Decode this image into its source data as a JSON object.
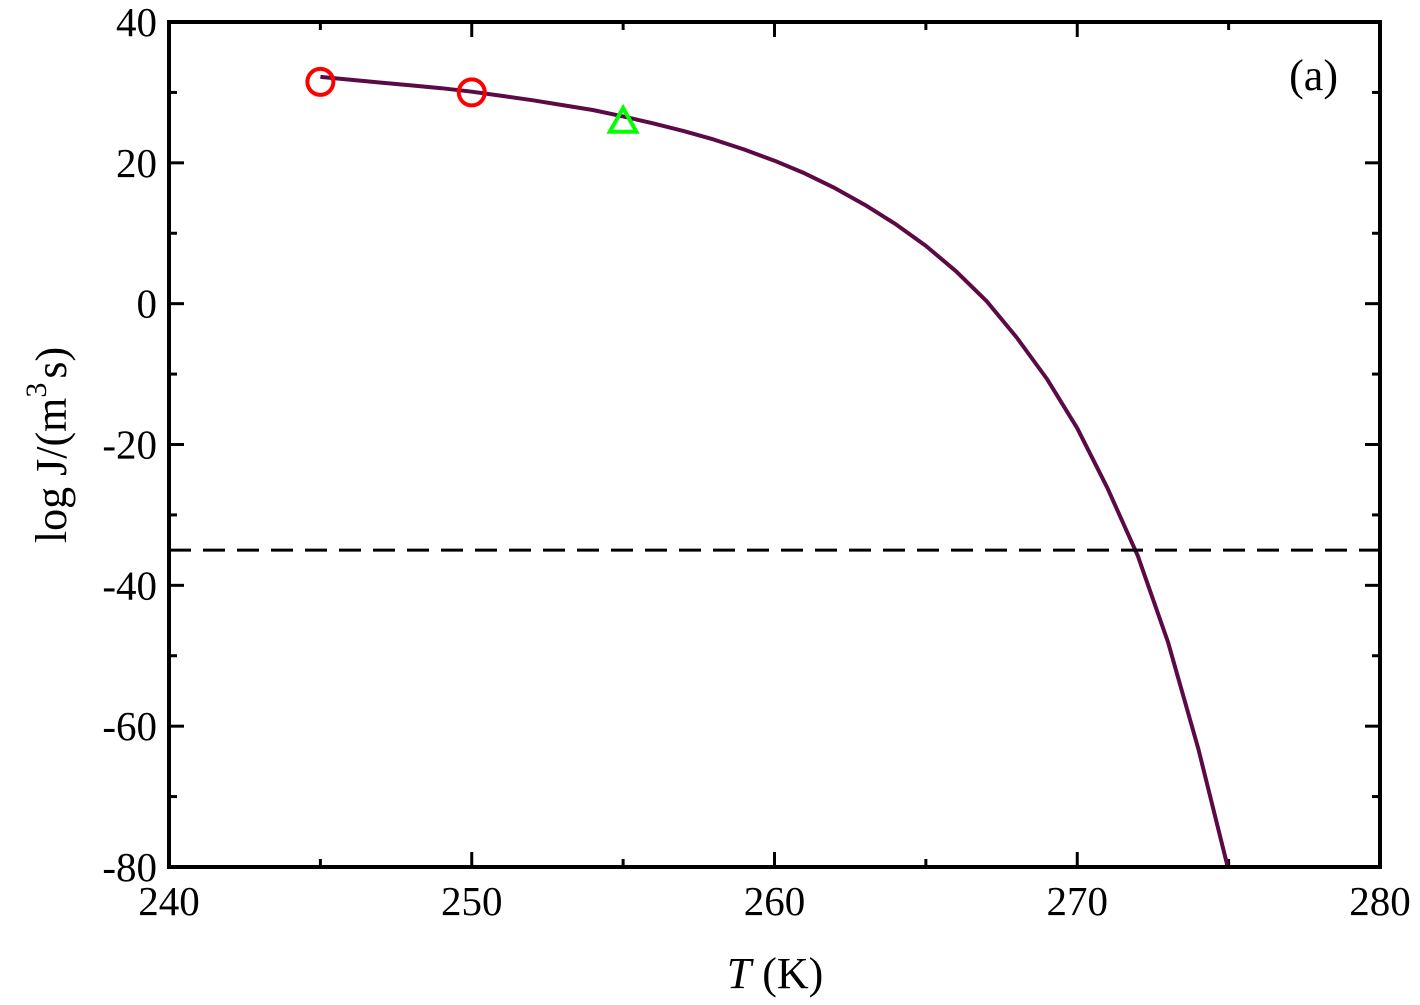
{
  "chart_data": {
    "type": "line",
    "title": "",
    "panel_label": "(a)",
    "xlabel": {
      "var": "T",
      "unit": " (K)"
    },
    "ylabel": {
      "main": "log J/(m",
      "sup": "3",
      "tail": "s)"
    },
    "xlim": [
      240,
      280
    ],
    "ylim": [
      -80,
      40
    ],
    "xticks": [
      240,
      250,
      260,
      270,
      280
    ],
    "yticks": [
      40,
      20,
      0,
      -20,
      -40,
      -60,
      -80
    ],
    "xtick_labels": [
      "240",
      "250",
      "260",
      "270",
      "280"
    ],
    "ytick_labels": [
      "40",
      "20",
      "0",
      "-20",
      "-40",
      "-60",
      "-80"
    ],
    "x_minor_step": 5,
    "y_minor_step": 10,
    "grid": false,
    "series": [
      {
        "kind": "line",
        "color": "#5c0a45",
        "x": [
          245,
          246,
          247,
          248,
          249,
          250,
          251,
          252,
          253,
          254,
          255,
          256,
          257,
          258,
          259,
          260,
          261,
          262,
          263,
          264,
          265,
          266,
          267,
          268,
          269,
          270,
          271,
          272,
          273,
          274,
          275
        ],
        "y": [
          32.2,
          31.8,
          31.4,
          31.0,
          30.6,
          30.1,
          29.5,
          28.9,
          28.2,
          27.5,
          26.6,
          25.6,
          24.5,
          23.3,
          21.9,
          20.3,
          18.5,
          16.4,
          14.0,
          11.3,
          8.2,
          4.6,
          0.4,
          -4.8,
          -10.7,
          -17.7,
          -26.2,
          -35.8,
          -48.1,
          -63.2,
          -80.5
        ]
      },
      {
        "kind": "markers",
        "marker": "circle",
        "color": "#ff0000",
        "x": [
          245,
          250
        ],
        "y": [
          31.5,
          30.0
        ]
      },
      {
        "kind": "markers",
        "marker": "triangle",
        "color": "#00ff00",
        "x": [
          255
        ],
        "y": [
          25.8
        ]
      },
      {
        "kind": "hline",
        "style": "dashed",
        "color": "#000000",
        "y": -35
      }
    ]
  }
}
